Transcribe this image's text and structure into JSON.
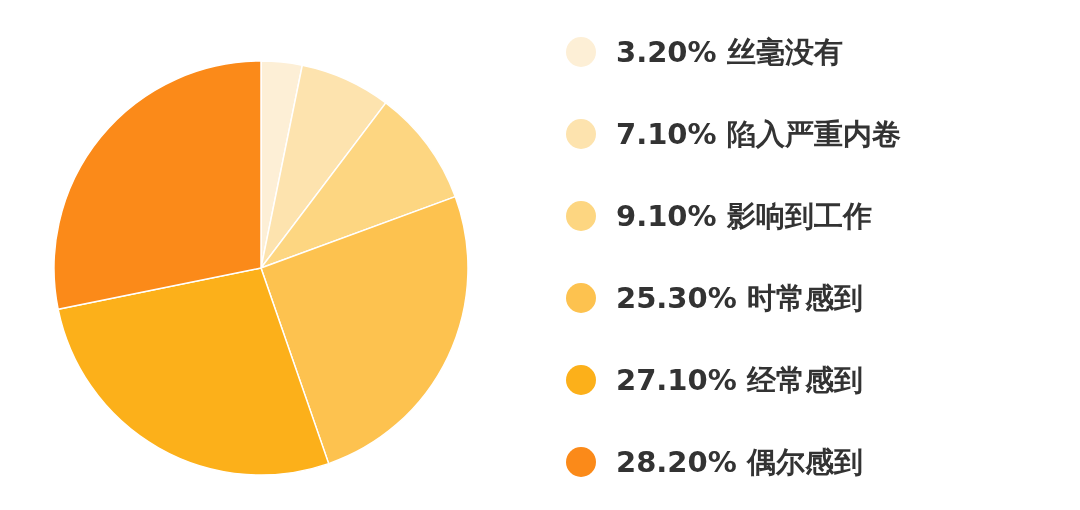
{
  "chart_data": {
    "type": "pie",
    "categories": [
      "丝毫没有",
      "陷入严重内卷",
      "影响到工作",
      "时常感到",
      "经常感到",
      "偶尔感到"
    ],
    "values": [
      3.2,
      7.1,
      9.1,
      25.3,
      27.1,
      28.2
    ],
    "value_labels": [
      "3.20%",
      "7.10%",
      "9.10%",
      "25.30%",
      "27.10%",
      "28.20%"
    ],
    "colors": [
      "#fdefd6",
      "#fde3ae",
      "#fdd681",
      "#fdc24f",
      "#fcb01a",
      "#fb8a19"
    ],
    "legend": "right"
  }
}
